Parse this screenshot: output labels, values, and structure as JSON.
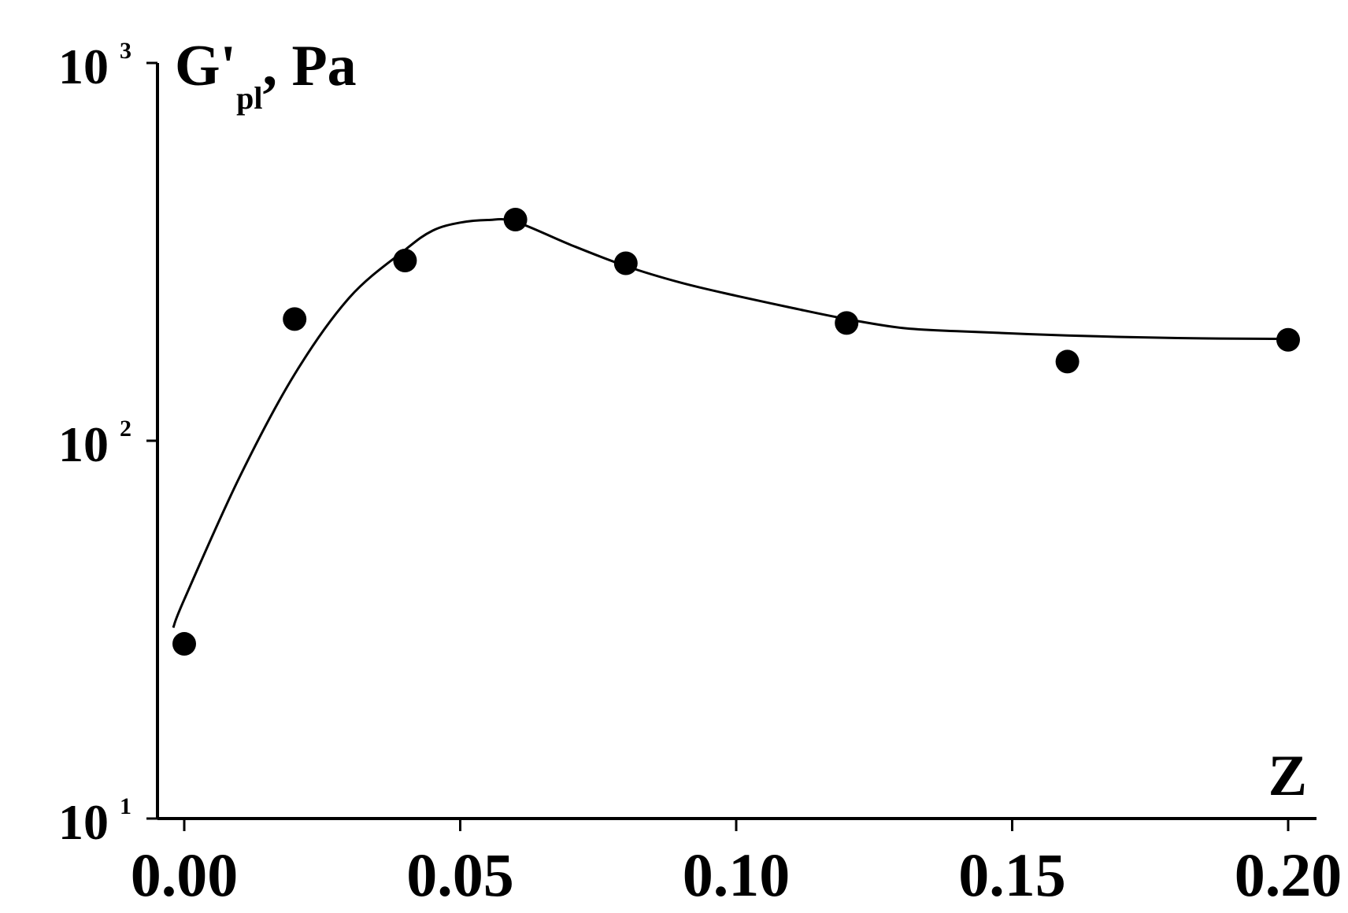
{
  "chart_data": {
    "type": "scatter",
    "title": "",
    "xlabel": "Z",
    "ylabel": {
      "symbol": "G'",
      "subscript": "pl",
      "suffix": ", Pa"
    },
    "xlim": [
      0.0,
      0.2
    ],
    "ylim": [
      10,
      1000
    ],
    "yscale": "log",
    "grid": false,
    "legend": "none",
    "x_ticks": [
      {
        "value": 0.0,
        "label": "0.00"
      },
      {
        "value": 0.05,
        "label": "0.05"
      },
      {
        "value": 0.1,
        "label": "0.10"
      },
      {
        "value": 0.15,
        "label": "0.15"
      },
      {
        "value": 0.2,
        "label": "0.20"
      }
    ],
    "y_ticks": [
      {
        "value": 10,
        "base": "10",
        "exp": "1"
      },
      {
        "value": 100,
        "base": "10",
        "exp": "2"
      },
      {
        "value": 1000,
        "base": "10",
        "exp": "3"
      }
    ],
    "series": [
      {
        "type": "scatter",
        "x": [
          0.0,
          0.02,
          0.04,
          0.06,
          0.08,
          0.12,
          0.16,
          0.2
        ],
        "y": [
          29,
          210,
          300,
          385,
          295,
          205,
          162,
          185
        ]
      },
      {
        "type": "line",
        "x": [
          -0.002,
          0.0,
          0.01,
          0.02,
          0.03,
          0.04,
          0.045,
          0.05,
          0.055,
          0.06,
          0.07,
          0.08,
          0.09,
          0.1,
          0.11,
          0.12,
          0.13,
          0.14,
          0.16,
          0.18,
          0.2
        ],
        "y": [
          32,
          38,
          80,
          150,
          240,
          320,
          360,
          378,
          384,
          380,
          330,
          290,
          262,
          242,
          225,
          210,
          199,
          195,
          190,
          187,
          186
        ]
      }
    ],
    "colors": {
      "ink": "#000000",
      "background": "#ffffff"
    }
  }
}
